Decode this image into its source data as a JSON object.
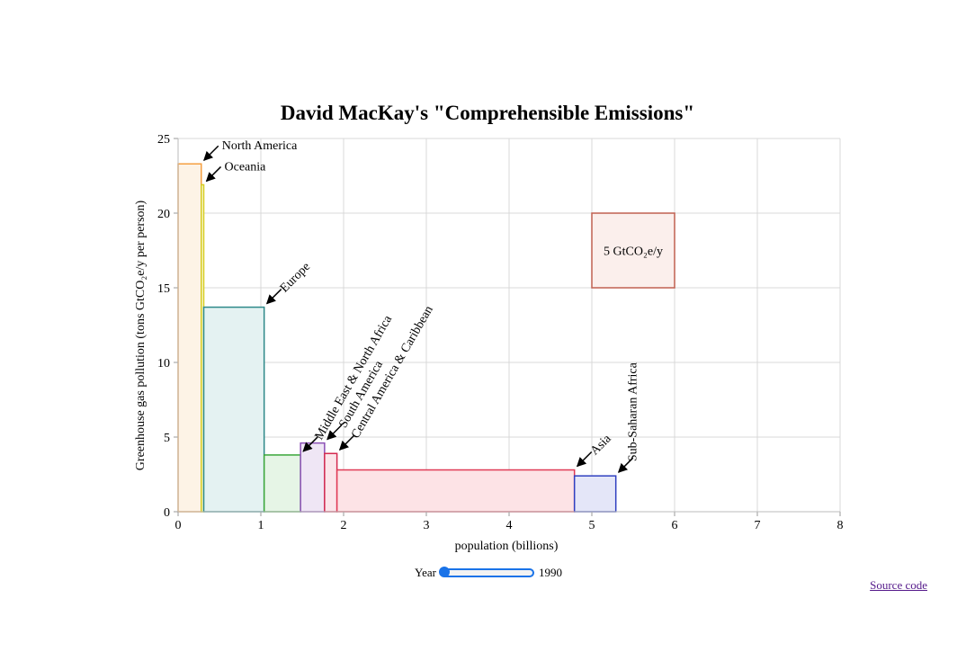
{
  "chart_data": {
    "type": "bar",
    "title": "David MacKay's \"Comprehensible Emissions\"",
    "xlabel": "population (billions)",
    "ylabel": "Greenhouse gas pollution (tons GtCO₂e/y per person)",
    "xlim": [
      0,
      8
    ],
    "ylim": [
      0,
      25
    ],
    "x_ticks": [
      "0",
      "1",
      "2",
      "3",
      "4",
      "5",
      "6",
      "7",
      "8"
    ],
    "y_ticks": [
      "0",
      "5",
      "10",
      "15",
      "20",
      "25"
    ],
    "grid": true,
    "series": [
      {
        "name": "North America",
        "x0": 0.0,
        "x1": 0.28,
        "value": 23.3,
        "color": "#f5a040",
        "fill": "#fdf3e6"
      },
      {
        "name": "Oceania",
        "x0": 0.28,
        "x1": 0.31,
        "value": 21.9,
        "color": "#d6cc20",
        "fill": "#fbf9e0"
      },
      {
        "name": "Europe",
        "x0": 0.31,
        "x1": 1.04,
        "value": 13.7,
        "color": "#2e8a8a",
        "fill": "#e4f2f2"
      },
      {
        "name": "Middle East & North Africa",
        "x0": 1.04,
        "x1": 1.48,
        "value": 3.8,
        "color": "#3aa63a",
        "fill": "#e6f5e6"
      },
      {
        "name": "South America",
        "x0": 1.48,
        "x1": 1.77,
        "value": 4.6,
        "color": "#8a4fb5",
        "fill": "#efe6f5"
      },
      {
        "name": "Central America & Caribbean",
        "x0": 1.77,
        "x1": 1.92,
        "value": 3.9,
        "color": "#d42a50",
        "fill": "#fbe5ea"
      },
      {
        "name": "Asia",
        "x0": 1.92,
        "x1": 4.79,
        "value": 2.8,
        "color": "#e03a55",
        "fill": "#fde3e6"
      },
      {
        "name": "Sub-Saharan Africa",
        "x0": 4.79,
        "x1": 5.29,
        "value": 2.4,
        "color": "#3040c0",
        "fill": "#e4e6f8"
      }
    ],
    "scale_box": {
      "label": "5 GtCO₂e/y",
      "x0": 5.0,
      "x1": 6.0,
      "y0": 15,
      "y1": 20,
      "color": "#c06050",
      "fill": "#fbefec"
    }
  },
  "controls": {
    "year_label": "Year",
    "year_value": "1990",
    "source_link": "Source code"
  }
}
